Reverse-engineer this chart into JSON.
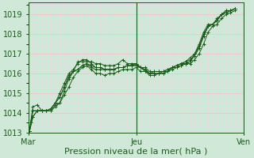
{
  "bg_color": "#d0e8d8",
  "grid_major_color": "#e8c8c8",
  "grid_minor_color": "#e8d8d8",
  "line_color": "#1a5c1a",
  "xlabel": "Pression niveau de la mer( hPa )",
  "ylim": [
    1013,
    1019.6
  ],
  "yticks": [
    1013,
    1014,
    1015,
    1016,
    1017,
    1018,
    1019
  ],
  "xtick_labels": [
    "Mar",
    "Jeu",
    "Ven"
  ],
  "xtick_positions": [
    0,
    48,
    96
  ],
  "vlines": [
    0,
    48,
    96
  ],
  "x_total": 96,
  "lines": [
    [
      0.5,
      1013.05,
      2,
      1013.8,
      4,
      1014.1,
      6,
      1014.1,
      8,
      1014.1,
      10,
      1014.1,
      12,
      1014.4,
      14,
      1014.5,
      16,
      1015.1,
      18,
      1015.7,
      20,
      1016.1,
      22,
      1016.6,
      24,
      1016.6,
      26,
      1016.6,
      28,
      1016.6,
      30,
      1016.5,
      32,
      1016.5,
      34,
      1016.4,
      36,
      1016.4,
      38,
      1016.4,
      40,
      1016.5,
      42,
      1016.7,
      44,
      1016.5,
      46,
      1016.5,
      48,
      1016.5,
      50,
      1016.3,
      52,
      1016.1,
      54,
      1016.0,
      56,
      1016.1,
      58,
      1016.1,
      60,
      1016.1,
      62,
      1016.2,
      64,
      1016.3,
      66,
      1016.3,
      68,
      1016.4,
      70,
      1016.5,
      72,
      1016.6,
      74,
      1017.0,
      76,
      1017.5,
      78,
      1018.1,
      80,
      1018.5,
      82,
      1018.5,
      84,
      1018.7,
      86,
      1019.0,
      88,
      1019.2,
      90,
      1019.2,
      92,
      1019.3
    ],
    [
      0.5,
      1013.05,
      2,
      1013.8,
      4,
      1014.1,
      6,
      1014.1,
      8,
      1014.1,
      10,
      1014.2,
      12,
      1014.5,
      14,
      1014.8,
      16,
      1015.3,
      18,
      1015.9,
      20,
      1016.1,
      22,
      1016.2,
      24,
      1016.4,
      26,
      1016.5,
      28,
      1016.4,
      30,
      1016.3,
      32,
      1016.3,
      34,
      1016.2,
      36,
      1016.2,
      38,
      1016.2,
      40,
      1016.3,
      42,
      1016.3,
      44,
      1016.4,
      46,
      1016.4,
      48,
      1016.4,
      50,
      1016.3,
      52,
      1016.2,
      54,
      1016.0,
      56,
      1016.0,
      58,
      1016.0,
      60,
      1016.0,
      62,
      1016.1,
      64,
      1016.3,
      66,
      1016.4,
      68,
      1016.5,
      70,
      1016.6,
      72,
      1016.7,
      74,
      1016.9,
      76,
      1017.3,
      78,
      1017.9,
      80,
      1018.4,
      82,
      1018.5,
      84,
      1018.7,
      86,
      1019.0,
      88,
      1019.1,
      90,
      1019.2,
      92,
      1019.3
    ],
    [
      0.5,
      1013.05,
      2,
      1014.1,
      4,
      1014.1,
      6,
      1014.1,
      8,
      1014.1,
      10,
      1014.2,
      12,
      1014.5,
      14,
      1014.8,
      16,
      1015.3,
      18,
      1015.8,
      20,
      1016.1,
      22,
      1016.2,
      24,
      1016.4,
      26,
      1016.5,
      28,
      1016.3,
      30,
      1016.2,
      32,
      1016.2,
      34,
      1016.2,
      36,
      1016.2,
      38,
      1016.2,
      40,
      1016.3,
      42,
      1016.3,
      44,
      1016.4,
      46,
      1016.4,
      48,
      1016.4,
      50,
      1016.3,
      52,
      1016.2,
      54,
      1016.0,
      56,
      1016.0,
      58,
      1016.0,
      60,
      1016.0,
      62,
      1016.1,
      64,
      1016.3,
      66,
      1016.4,
      68,
      1016.5,
      70,
      1016.5,
      72,
      1016.6,
      74,
      1016.9,
      76,
      1017.3,
      78,
      1017.9,
      80,
      1018.4,
      82,
      1018.5,
      84,
      1018.7,
      86,
      1019.0,
      88,
      1019.1,
      90,
      1019.2,
      92,
      1019.3
    ],
    [
      0.5,
      1013.05,
      2,
      1014.3,
      4,
      1014.4,
      6,
      1014.1,
      8,
      1014.1,
      10,
      1014.1,
      12,
      1014.3,
      14,
      1014.5,
      16,
      1014.9,
      18,
      1015.3,
      20,
      1015.8,
      22,
      1016.1,
      24,
      1016.3,
      26,
      1016.4,
      28,
      1016.2,
      30,
      1016.0,
      32,
      1016.0,
      34,
      1015.9,
      36,
      1016.0,
      38,
      1016.0,
      40,
      1016.1,
      42,
      1016.2,
      44,
      1016.2,
      46,
      1016.2,
      48,
      1016.3,
      50,
      1016.1,
      52,
      1016.1,
      54,
      1015.9,
      56,
      1015.9,
      58,
      1016.0,
      60,
      1016.1,
      62,
      1016.1,
      64,
      1016.2,
      66,
      1016.3,
      68,
      1016.4,
      70,
      1016.5,
      72,
      1016.5,
      74,
      1016.7,
      76,
      1017.0,
      78,
      1017.5,
      80,
      1018.1,
      82,
      1018.4,
      84,
      1018.5,
      86,
      1018.8,
      88,
      1019.0,
      90,
      1019.1,
      92,
      1019.2
    ],
    [
      0.5,
      1013.05,
      1,
      1013.5,
      2,
      1014.1,
      4,
      1014.1,
      6,
      1014.1,
      8,
      1014.1,
      10,
      1014.2,
      12,
      1014.5,
      14,
      1015.0,
      16,
      1015.5,
      18,
      1016.0,
      20,
      1016.2,
      22,
      1016.5,
      24,
      1016.7,
      26,
      1016.7,
      28,
      1016.5,
      30,
      1016.3,
      32,
      1016.3,
      34,
      1016.2,
      36,
      1016.2,
      38,
      1016.2,
      40,
      1016.3,
      42,
      1016.3,
      44,
      1016.4,
      46,
      1016.4,
      48,
      1016.5,
      50,
      1016.3,
      52,
      1016.3,
      54,
      1016.1,
      56,
      1016.1,
      58,
      1016.1,
      60,
      1016.1,
      62,
      1016.2,
      64,
      1016.3,
      66,
      1016.4,
      68,
      1016.5,
      70,
      1016.6,
      72,
      1016.8,
      74,
      1017.0,
      76,
      1017.4,
      78,
      1018.0,
      80,
      1018.4,
      82,
      1018.5,
      84,
      1018.8,
      86,
      1019.0,
      88,
      1019.2,
      90,
      1019.2,
      92,
      1019.3
    ]
  ]
}
